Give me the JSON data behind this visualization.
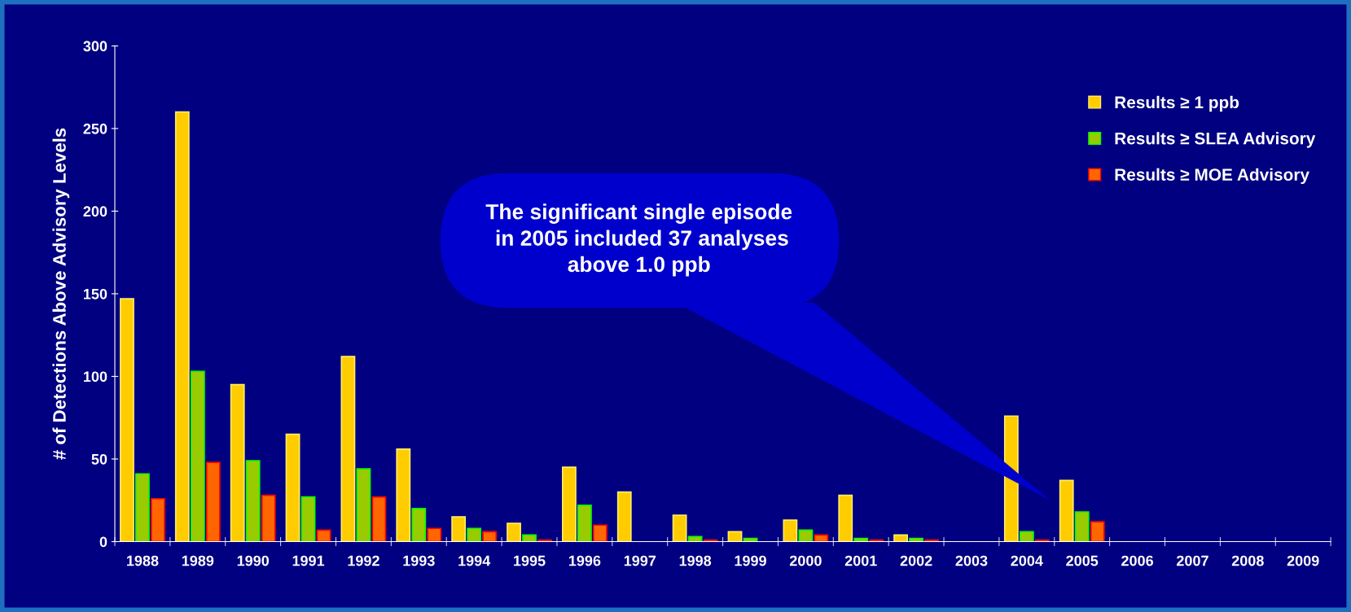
{
  "chart_data": {
    "type": "bar",
    "ylabel": "# of Detections Above Advisory Levels",
    "categories": [
      "1988",
      "1989",
      "1990",
      "1991",
      "1992",
      "1993",
      "1994",
      "1995",
      "1996",
      "1997",
      "1998",
      "1999",
      "2000",
      "2001",
      "2002",
      "2003",
      "2004",
      "2005",
      "2006",
      "2007",
      "2008",
      "2009"
    ],
    "series": [
      {
        "name": "Results ≥ 1 ppb",
        "color": "#ffcc00",
        "values": [
          147,
          260,
          95,
          65,
          112,
          56,
          15,
          11,
          45,
          30,
          16,
          6,
          13,
          28,
          4,
          null,
          76,
          37,
          null,
          null,
          null,
          null
        ]
      },
      {
        "name": "Results ≥ SLEA Advisory",
        "color": "#99cc00",
        "values": [
          41,
          103,
          49,
          27,
          44,
          20,
          8,
          4,
          22,
          null,
          3,
          2,
          7,
          2,
          2,
          null,
          6,
          18,
          null,
          null,
          null,
          null
        ]
      },
      {
        "name": "Results ≥ MOE Advisory",
        "color": "#ff6600",
        "values": [
          26,
          48,
          28,
          7,
          27,
          8,
          6,
          1,
          10,
          null,
          1,
          null,
          4,
          1,
          1,
          null,
          1,
          12,
          null,
          null,
          null,
          null
        ]
      }
    ],
    "ylim": [
      0,
      300
    ],
    "yticks": [
      0,
      50,
      100,
      150,
      200,
      250,
      300
    ],
    "grid": false,
    "legend": "top right",
    "annotations": [
      "The significant single episode\n in 2005 included 37 analyses\nabove 1.0 ppb"
    ]
  }
}
